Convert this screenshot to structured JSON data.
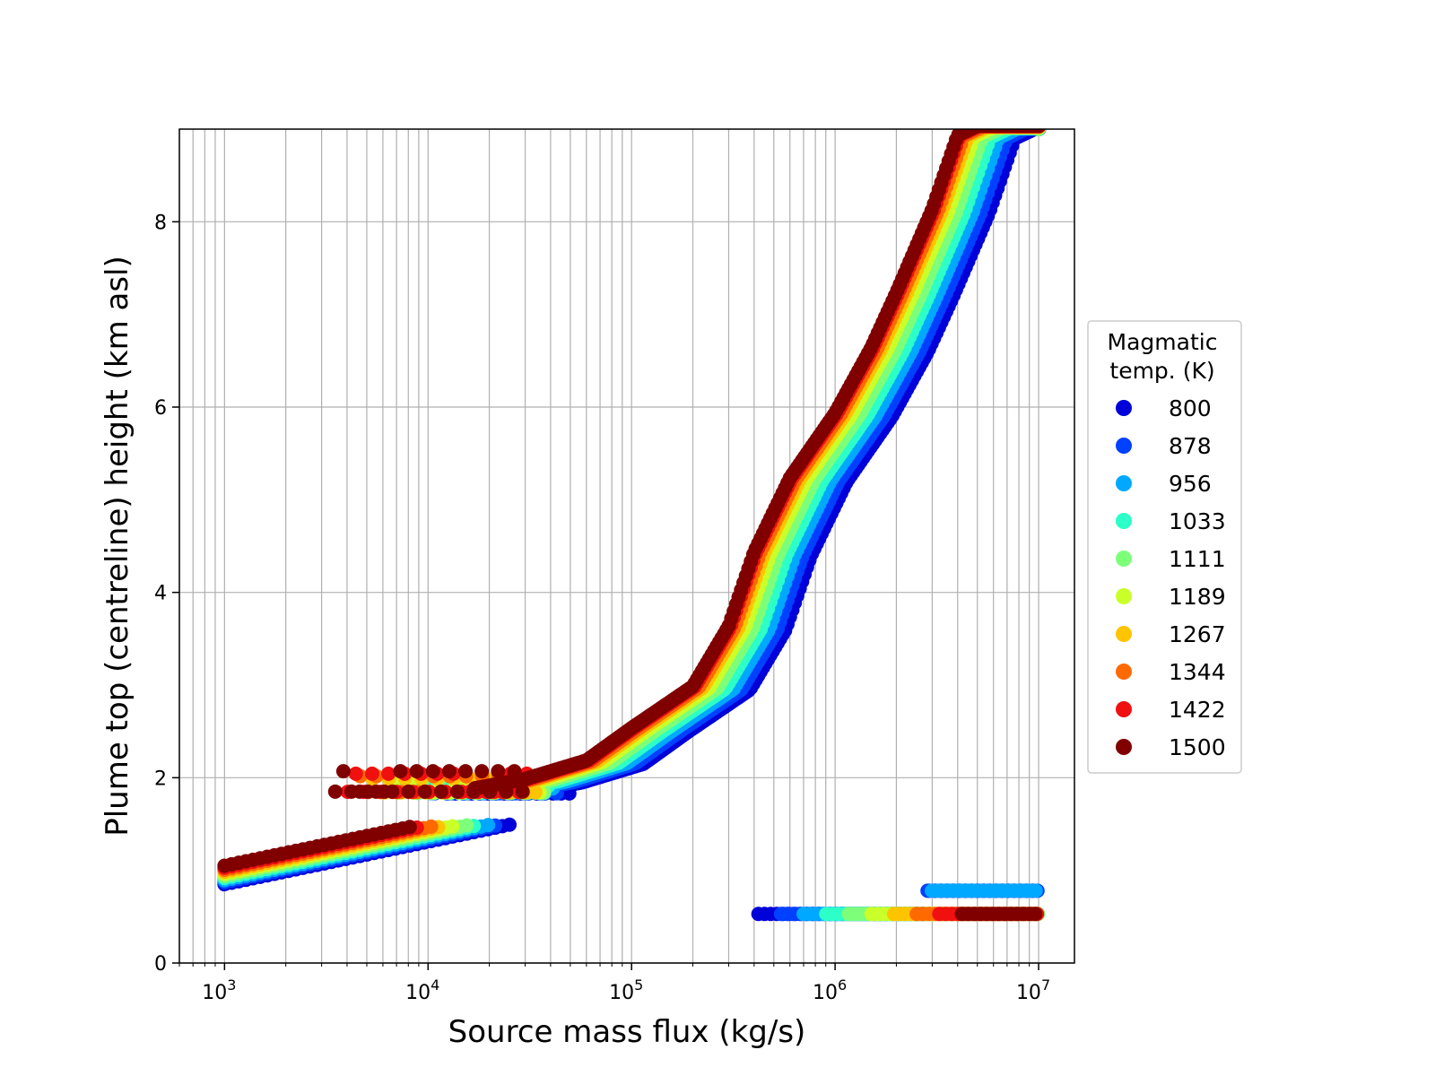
{
  "chart_data": {
    "type": "scatter",
    "title": "",
    "xlabel": "Source mass flux (kg/s)",
    "ylabel": "Plume top (centreline) height (km asl)",
    "xscale": "log",
    "xlim": [
      600,
      15000000
    ],
    "ylim": [
      0,
      9
    ],
    "grid": true,
    "x_tick_labels": [
      {
        "base": "10",
        "exp": "3"
      },
      {
        "base": "10",
        "exp": "4"
      },
      {
        "base": "10",
        "exp": "5"
      },
      {
        "base": "10",
        "exp": "6"
      },
      {
        "base": "10",
        "exp": "7"
      }
    ],
    "x_ticks": [
      1000,
      10000,
      100000,
      1000000,
      10000000
    ],
    "y_ticks": [
      0,
      2,
      4,
      6,
      8
    ],
    "y_tick_labels": [
      "0",
      "2",
      "4",
      "6",
      "8"
    ],
    "legend": {
      "title_lines": [
        "Magmatic",
        "temp. (K)"
      ],
      "placement": "right, outside plot area"
    },
    "series": [
      {
        "name": "800",
        "color": "#0000d8",
        "upper_curve_y_offset": 0.0,
        "upper_curve_x_shift": 0.28
      },
      {
        "name": "878",
        "color": "#0040ff",
        "upper_curve_y_offset": 0.02,
        "upper_curve_x_shift": 0.24
      },
      {
        "name": "956",
        "color": "#00a8ff",
        "upper_curve_y_offset": 0.04,
        "upper_curve_x_shift": 0.2
      },
      {
        "name": "1033",
        "color": "#2cffc8",
        "upper_curve_y_offset": 0.06,
        "upper_curve_x_shift": 0.16
      },
      {
        "name": "1111",
        "color": "#7dff7a",
        "upper_curve_y_offset": 0.08,
        "upper_curve_x_shift": 0.12
      },
      {
        "name": "1189",
        "color": "#caff2a",
        "upper_curve_y_offset": 0.1,
        "upper_curve_x_shift": 0.08
      },
      {
        "name": "1267",
        "color": "#ffc400",
        "upper_curve_y_offset": 0.12,
        "upper_curve_x_shift": 0.05
      },
      {
        "name": "1344",
        "color": "#ff6a00",
        "upper_curve_y_offset": 0.14,
        "upper_curve_x_shift": 0.03
      },
      {
        "name": "1422",
        "color": "#f01010",
        "upper_curve_y_offset": 0.16,
        "upper_curve_x_shift": 0.01
      },
      {
        "name": "1500",
        "color": "#800000",
        "upper_curve_y_offset": 0.18,
        "upper_curve_x_shift": 0.0
      }
    ],
    "branches": {
      "lower_left": {
        "x_range": [
          1000,
          26000
        ],
        "y_start": [
          0.85,
          1.05
        ],
        "y_end": [
          1.5,
          1.55
        ]
      },
      "plateau": {
        "x_range": [
          3500,
          30000
        ],
        "y": [
          1.83,
          2.05
        ]
      },
      "main_curve": [
        [
          17000,
          1.85
        ],
        [
          30000,
          1.95
        ],
        [
          60000,
          2.15
        ],
        [
          100000,
          2.5
        ],
        [
          200000,
          2.95
        ],
        [
          300000,
          3.6
        ],
        [
          400000,
          4.4
        ],
        [
          600000,
          5.2
        ],
        [
          1000000,
          5.9
        ],
        [
          1500000,
          6.6
        ],
        [
          2000000,
          7.2
        ],
        [
          3000000,
          8.1
        ],
        [
          4000000,
          8.9
        ],
        [
          5000000,
          9.0
        ]
      ],
      "lower_right": {
        "x_range": [
          420000,
          10000000
        ],
        "y": [
          0.45,
          0.85
        ]
      }
    }
  }
}
